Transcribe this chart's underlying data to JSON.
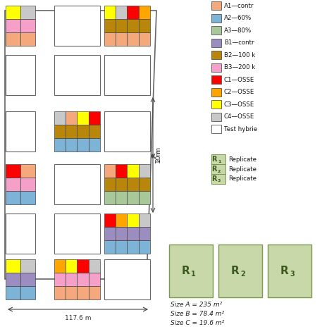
{
  "legend_items": [
    {
      "label": "A1—contr",
      "color": "#F4A87C"
    },
    {
      "label": "A2—60%",
      "color": "#7EB3D8"
    },
    {
      "label": "A3—80%",
      "color": "#A8C89A"
    },
    {
      "label": "B1—contr",
      "color": "#9B8DC0"
    },
    {
      "label": "B2—100 k",
      "color": "#B8860B"
    },
    {
      "label": "B3—200 k",
      "color": "#F4A0C8"
    },
    {
      "label": "C1—OSSE",
      "color": "#FF0000"
    },
    {
      "label": "C2—OSSE",
      "color": "#FFA500"
    },
    {
      "label": "C3—OSSE",
      "color": "#FFFF00"
    },
    {
      "label": "C4—OSSE",
      "color": "#C8C8C8"
    },
    {
      "label": "Test hybrie",
      "color": "#FFFFFF"
    }
  ],
  "replicate_labels": [
    "R1",
    "R2",
    "R3"
  ],
  "replicate_label_full": [
    "Replicate",
    "Replicate",
    "Replicate"
  ],
  "size_text": [
    "Size A = 235 m²",
    "Size B = 78.4 m²",
    "Size C = 19.6 m²"
  ],
  "width_label": "117.6 m",
  "dim_2m": "2 m",
  "dim_10m": "10 m",
  "bg_color": "#FFFFFF",
  "replicate_bg": "#C8D8A8",
  "replicate_border": "#7A9A50",
  "A1": "#F4A87C",
  "A2": "#7EB3D8",
  "A3": "#A8C89A",
  "B1": "#9B8DC0",
  "B2": "#B8860B",
  "B3": "#F4A0C8",
  "C1": "#FF0000",
  "C2": "#FFA500",
  "C3": "#FFFF00",
  "C4": "#C8C8C8"
}
